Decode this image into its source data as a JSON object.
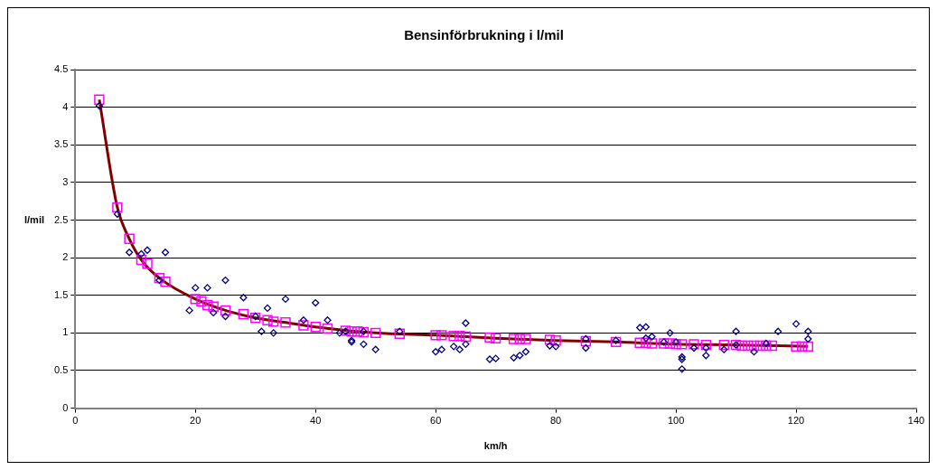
{
  "chart_data": {
    "type": "scatter",
    "title": "Bensinförbrukning i l/mil",
    "xlabel": "km/h",
    "ylabel": "l/mil",
    "xlim": [
      0,
      140
    ],
    "xticks": [
      0,
      20,
      40,
      60,
      80,
      100,
      120,
      140
    ],
    "ylim": [
      0,
      4.5
    ],
    "yticks": [
      0,
      0.5,
      1,
      1.5,
      2,
      2.5,
      3,
      3.5,
      4,
      4.5
    ],
    "grid": "y",
    "legend": false,
    "series": [
      {
        "type": "scatter",
        "marker": "diamond",
        "color": "#000080",
        "x": [
          4,
          7,
          9,
          11,
          12,
          15,
          14,
          19,
          20,
          22,
          23,
          25,
          25,
          28,
          30,
          31,
          32,
          33,
          35,
          38,
          40,
          42,
          44,
          45,
          46,
          46,
          48,
          48,
          50,
          54,
          60,
          61,
          63,
          64,
          65,
          65,
          69,
          70,
          73,
          74,
          75,
          79,
          80,
          85,
          85,
          90,
          94,
          95,
          95,
          96,
          98,
          99,
          100,
          101,
          101,
          101,
          103,
          105,
          105,
          108,
          110,
          110,
          113,
          115,
          117,
          120,
          122,
          122
        ],
        "values": [
          4.02,
          2.58,
          2.07,
          2.05,
          2.1,
          2.07,
          1.7,
          1.3,
          1.6,
          1.6,
          1.27,
          1.7,
          1.22,
          1.47,
          1.22,
          1.02,
          1.33,
          1.0,
          1.45,
          1.17,
          1.4,
          1.17,
          1.0,
          1.02,
          0.88,
          0.9,
          0.85,
          1.02,
          0.78,
          1.02,
          0.75,
          0.78,
          0.82,
          0.78,
          1.13,
          0.85,
          0.65,
          0.66,
          0.67,
          0.7,
          0.75,
          0.83,
          0.82,
          0.92,
          0.8,
          0.9,
          1.07,
          1.08,
          0.93,
          0.95,
          0.88,
          1.0,
          0.88,
          0.65,
          0.52,
          0.68,
          0.8,
          0.7,
          0.8,
          0.78,
          0.84,
          1.02,
          0.75,
          0.86,
          1.02,
          1.12,
          1.02,
          0.92
        ]
      },
      {
        "type": "scatter",
        "marker": "square",
        "color": "#ff00ff",
        "x": [
          4,
          7,
          9,
          11,
          12,
          14,
          15,
          20,
          21,
          22,
          23,
          25,
          28,
          30,
          32,
          33,
          35,
          38,
          40,
          42,
          45,
          46,
          47,
          48,
          50,
          54,
          60,
          61,
          63,
          64,
          65,
          69,
          70,
          73,
          74,
          75,
          79,
          80,
          85,
          90,
          94,
          95,
          96,
          98,
          99,
          100,
          101,
          103,
          105,
          108,
          110,
          111,
          112,
          113,
          114,
          115,
          116,
          120,
          121,
          122
        ],
        "values": [
          4.1,
          2.67,
          2.25,
          1.97,
          1.92,
          1.73,
          1.68,
          1.45,
          1.42,
          1.37,
          1.35,
          1.3,
          1.25,
          1.2,
          1.17,
          1.15,
          1.14,
          1.1,
          1.08,
          1.06,
          1.03,
          1.02,
          1.02,
          1.01,
          1.0,
          0.99,
          0.97,
          0.97,
          0.96,
          0.96,
          0.95,
          0.94,
          0.93,
          0.92,
          0.92,
          0.92,
          0.91,
          0.9,
          0.89,
          0.88,
          0.87,
          0.87,
          0.86,
          0.86,
          0.86,
          0.85,
          0.85,
          0.85,
          0.84,
          0.84,
          0.84,
          0.83,
          0.83,
          0.83,
          0.83,
          0.83,
          0.83,
          0.82,
          0.82,
          0.82
        ]
      },
      {
        "type": "line",
        "marker": "none",
        "color": "#800000",
        "x": [
          4,
          7,
          9,
          11,
          14,
          20,
          25,
          30,
          35,
          40,
          50,
          60,
          70,
          80,
          90,
          100,
          110,
          122
        ],
        "values": [
          4.1,
          2.67,
          2.25,
          1.97,
          1.73,
          1.45,
          1.3,
          1.2,
          1.14,
          1.08,
          1.0,
          0.97,
          0.93,
          0.9,
          0.88,
          0.85,
          0.84,
          0.82
        ]
      }
    ]
  }
}
